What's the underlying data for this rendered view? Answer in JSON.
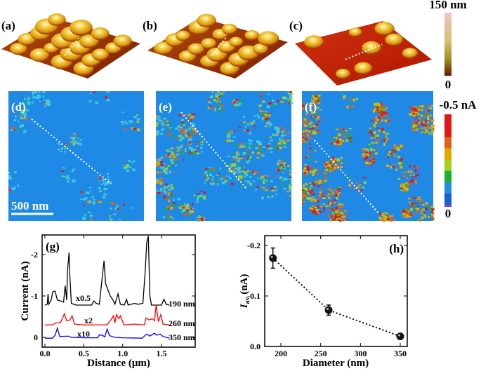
{
  "panels": {
    "a": "(a)",
    "b": "(b)",
    "c": "(c)",
    "d": "(d)",
    "e": "(e)",
    "f": "(f)",
    "g": "(g)",
    "h": "(h)"
  },
  "height_colorbar": {
    "top": "150 nm",
    "bottom": "0",
    "colors": [
      "#f2c4c8",
      "#d8c070",
      "#a08a20",
      "#6a1a00"
    ]
  },
  "current_colorbar": {
    "top": "-0.5 nA",
    "bottom": "0",
    "colors": [
      "#e01818",
      "#e01818",
      "#e06018",
      "#e0a800",
      "#a8d020",
      "#20b030",
      "#2090e0",
      "#1860d0",
      "#8040d0"
    ]
  },
  "scale_bar": "500 nm",
  "map_background": "#1e8ae6",
  "chart_data": [
    {
      "type": "line",
      "panel": "(g)",
      "xlabel": "Distance (μm)",
      "ylabel": "Current (nA)",
      "xlim": [
        -0.04,
        1.95
      ],
      "ylim": [
        0.24,
        -2.47
      ],
      "y_reversed": true,
      "xticks": [
        "0.0",
        "0.5",
        "1.0",
        "1.5"
      ],
      "xtick_values": [
        0,
        0.5,
        1.0,
        1.5
      ],
      "yticks": [
        "-2",
        "-1",
        "0"
      ],
      "ytick_values": [
        -2,
        -1,
        0
      ],
      "series": [
        {
          "name": "190 nm",
          "scale": "x0.5",
          "color": "#000000",
          "points": [
            [
              0,
              -0.78
            ],
            [
              0.03,
              -0.8
            ],
            [
              0.04,
              -1.05
            ],
            [
              0.05,
              -0.8
            ],
            [
              0.08,
              -0.9
            ],
            [
              0.1,
              -1.1
            ],
            [
              0.13,
              -1.12
            ],
            [
              0.16,
              -0.9
            ],
            [
              0.2,
              -0.88
            ],
            [
              0.24,
              -0.85
            ],
            [
              0.26,
              -1.25
            ],
            [
              0.28,
              -0.9
            ],
            [
              0.29,
              -1.6
            ],
            [
              0.31,
              -2.05
            ],
            [
              0.32,
              -1.5
            ],
            [
              0.34,
              -0.82
            ],
            [
              0.4,
              -0.78
            ],
            [
              0.6,
              -0.78
            ],
            [
              0.63,
              -0.88
            ],
            [
              0.66,
              -0.82
            ],
            [
              0.7,
              -0.8
            ],
            [
              0.74,
              -1.5
            ],
            [
              0.76,
              -1.85
            ],
            [
              0.78,
              -1.3
            ],
            [
              0.81,
              -1.15
            ],
            [
              0.84,
              -1.0
            ],
            [
              0.87,
              -0.92
            ],
            [
              0.9,
              -0.8
            ],
            [
              0.94,
              -1.05
            ],
            [
              0.97,
              -0.8
            ],
            [
              1.02,
              -0.78
            ],
            [
              1.05,
              -0.92
            ],
            [
              1.07,
              -0.78
            ],
            [
              1.15,
              -0.82
            ],
            [
              1.2,
              -0.8
            ],
            [
              1.26,
              -0.82
            ],
            [
              1.29,
              -1.6
            ],
            [
              1.31,
              -2.3
            ],
            [
              1.33,
              -2.45
            ],
            [
              1.35,
              -1.0
            ],
            [
              1.37,
              -0.78
            ],
            [
              1.5,
              -0.78
            ],
            [
              1.53,
              -0.92
            ],
            [
              1.56,
              -0.8
            ],
            [
              1.6,
              -0.78
            ]
          ]
        },
        {
          "name": "260 nm",
          "scale": "x2",
          "color": "#ff0000",
          "points": [
            [
              0,
              -0.3
            ],
            [
              0.1,
              -0.3
            ],
            [
              0.14,
              -0.35
            ],
            [
              0.2,
              -0.35
            ],
            [
              0.25,
              -0.57
            ],
            [
              0.28,
              -0.4
            ],
            [
              0.32,
              -0.42
            ],
            [
              0.35,
              -0.52
            ],
            [
              0.38,
              -0.32
            ],
            [
              0.5,
              -0.3
            ],
            [
              0.8,
              -0.3
            ],
            [
              0.86,
              -0.45
            ],
            [
              0.88,
              -0.52
            ],
            [
              0.9,
              -0.35
            ],
            [
              0.92,
              -0.55
            ],
            [
              0.95,
              -0.45
            ],
            [
              0.97,
              -0.52
            ],
            [
              1.0,
              -0.38
            ],
            [
              1.02,
              -0.3
            ],
            [
              1.15,
              -0.32
            ],
            [
              1.28,
              -0.3
            ],
            [
              1.3,
              -0.47
            ],
            [
              1.34,
              -0.42
            ],
            [
              1.38,
              -0.45
            ],
            [
              1.41,
              -0.4
            ],
            [
              1.43,
              -0.78
            ],
            [
              1.46,
              -0.38
            ],
            [
              1.49,
              -0.55
            ],
            [
              1.52,
              -0.32
            ],
            [
              1.6,
              -0.3
            ]
          ]
        },
        {
          "name": "350 nm",
          "scale": "x10",
          "color": "#0000ff",
          "points": [
            [
              0,
              0.02
            ],
            [
              0.1,
              0.02
            ],
            [
              0.13,
              -0.05
            ],
            [
              0.16,
              -0.22
            ],
            [
              0.19,
              -0.02
            ],
            [
              0.3,
              -0.03
            ],
            [
              0.34,
              0.0
            ],
            [
              0.5,
              0.01
            ],
            [
              0.68,
              0.01
            ],
            [
              0.7,
              -0.06
            ],
            [
              0.74,
              -0.05
            ],
            [
              0.77,
              -0.01
            ],
            [
              0.8,
              -0.2
            ],
            [
              0.83,
              -0.04
            ],
            [
              0.9,
              0.0
            ],
            [
              1.0,
              0.01
            ],
            [
              1.25,
              0.02
            ],
            [
              1.31,
              -0.08
            ],
            [
              1.35,
              -0.03
            ],
            [
              1.41,
              -0.1
            ],
            [
              1.44,
              -0.05
            ],
            [
              1.48,
              -0.08
            ],
            [
              1.52,
              -0.02
            ],
            [
              1.6,
              0.02
            ]
          ]
        }
      ]
    },
    {
      "type": "scatter",
      "panel": "(h)",
      "xlabel": "Diameter (nm)",
      "ylabel_main": "I",
      "ylabel_sub": "av",
      "ylabel_unit": " (nA)",
      "xlim": [
        180,
        359
      ],
      "ylim": [
        0.0,
        -0.22
      ],
      "y_reversed": true,
      "xticks": [
        "200",
        "250",
        "300",
        "350"
      ],
      "xtick_values": [
        200,
        250,
        300,
        350
      ],
      "yticks": [
        "-0.2",
        "-0.1",
        "0.0"
      ],
      "ytick_values": [
        -0.2,
        -0.1,
        0.0
      ],
      "x": [
        190,
        260,
        350
      ],
      "y": [
        -0.175,
        -0.072,
        -0.02
      ],
      "yerr": [
        0.02,
        0.01,
        0.004
      ],
      "connector": "dotted"
    }
  ]
}
